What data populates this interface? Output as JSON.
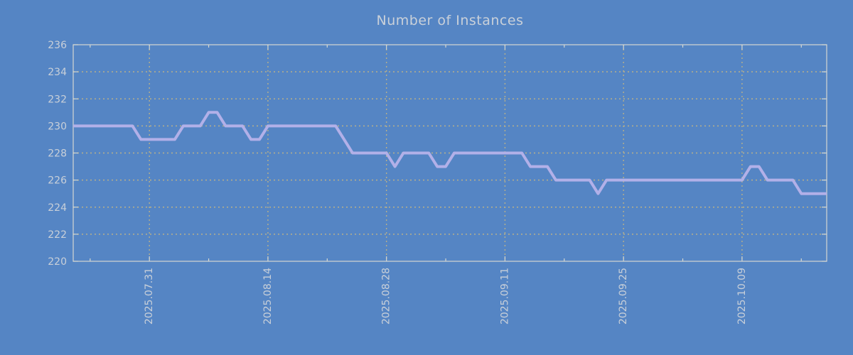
{
  "chart_data": {
    "type": "line",
    "title": "Number of Instances",
    "xlabel": "",
    "ylabel": "",
    "ylim": [
      220,
      236
    ],
    "ytick_labels": [
      "220",
      "222",
      "224",
      "226",
      "228",
      "230",
      "232",
      "234",
      "236"
    ],
    "grid": true,
    "legend": "none",
    "x": [
      "2025.07.22",
      "2025.07.23",
      "2025.07.24",
      "2025.07.25",
      "2025.07.26",
      "2025.07.27",
      "2025.07.28",
      "2025.07.29",
      "2025.07.30",
      "2025.07.31",
      "2025.08.01",
      "2025.08.02",
      "2025.08.03",
      "2025.08.04",
      "2025.08.05",
      "2025.08.06",
      "2025.08.07",
      "2025.08.08",
      "2025.08.09",
      "2025.08.10",
      "2025.08.11",
      "2025.08.12",
      "2025.08.13",
      "2025.08.14",
      "2025.08.15",
      "2025.08.16",
      "2025.08.17",
      "2025.08.18",
      "2025.08.19",
      "2025.08.20",
      "2025.08.21",
      "2025.08.22",
      "2025.08.23",
      "2025.08.24",
      "2025.08.25",
      "2025.08.26",
      "2025.08.27",
      "2025.08.28",
      "2025.08.29",
      "2025.08.30",
      "2025.08.31",
      "2025.09.01",
      "2025.09.02",
      "2025.09.03",
      "2025.09.04",
      "2025.09.05",
      "2025.09.06",
      "2025.09.07",
      "2025.09.08",
      "2025.09.09",
      "2025.09.10",
      "2025.09.11",
      "2025.09.12",
      "2025.09.13",
      "2025.09.14",
      "2025.09.15",
      "2025.09.16",
      "2025.09.17",
      "2025.09.18",
      "2025.09.19",
      "2025.09.20",
      "2025.09.21",
      "2025.09.22",
      "2025.09.23",
      "2025.09.24",
      "2025.09.25",
      "2025.09.26",
      "2025.09.27",
      "2025.09.28",
      "2025.09.29",
      "2025.09.30",
      "2025.10.01",
      "2025.10.02",
      "2025.10.03",
      "2025.10.04",
      "2025.10.05",
      "2025.10.06",
      "2025.10.07",
      "2025.10.08",
      "2025.10.09",
      "2025.10.10",
      "2025.10.11",
      "2025.10.12",
      "2025.10.13",
      "2025.10.14",
      "2025.10.15",
      "2025.10.16",
      "2025.10.17",
      "2025.10.18",
      "2025.10.19"
    ],
    "values": [
      230,
      230,
      230,
      230,
      230,
      230,
      230,
      230,
      229,
      229,
      229,
      229,
      229,
      230,
      230,
      230,
      231,
      231,
      230,
      230,
      230,
      229,
      229,
      230,
      230,
      230,
      230,
      230,
      230,
      230,
      230,
      230,
      229,
      228,
      228,
      228,
      228,
      228,
      227,
      228,
      228,
      228,
      228,
      227,
      227,
      228,
      228,
      228,
      228,
      228,
      228,
      228,
      228,
      228,
      227,
      227,
      227,
      226,
      226,
      226,
      226,
      226,
      225,
      226,
      226,
      226,
      226,
      226,
      226,
      226,
      226,
      226,
      226,
      226,
      226,
      226,
      226,
      226,
      226,
      226,
      227,
      227,
      226,
      226,
      226,
      226,
      225,
      225,
      225,
      225
    ],
    "x_major_ticks": [
      {
        "label": "2025.07.31",
        "index": 9
      },
      {
        "label": "2025.08.14",
        "index": 23
      },
      {
        "label": "2025.08.28",
        "index": 37
      },
      {
        "label": "2025.09.11",
        "index": 51
      },
      {
        "label": "2025.09.25",
        "index": 65
      },
      {
        "label": "2025.10.09",
        "index": 79
      }
    ],
    "x_minor_tick_indices": [
      2,
      16,
      30,
      44,
      58,
      72,
      86
    ],
    "colors": {
      "background": "#5585c4",
      "series_line": "#b2b0e8",
      "grid": "#b8b08a",
      "axis_frame": "#d5d8d2",
      "text": "#c9d0d9"
    }
  }
}
